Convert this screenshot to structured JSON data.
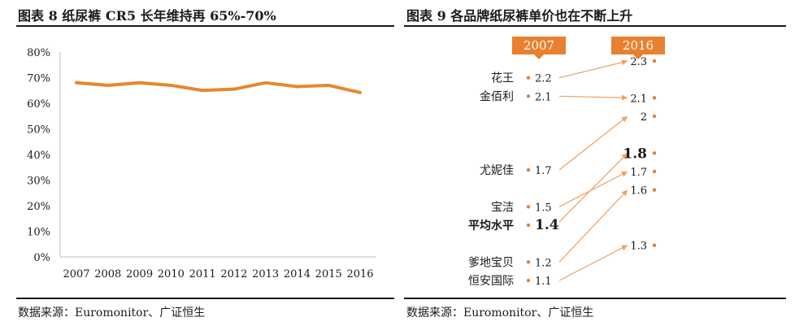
{
  "left_panel": {
    "title": "图表 8 纸尿裤 CR5 长年维持再 65%-70%",
    "source": "数据来源：Euromonitor、广证恒生"
  },
  "right_panel": {
    "title": "图表 9 各品牌纸尿裤单价也在不断上升",
    "source": "数据来源：Euromonitor、广证恒生"
  },
  "colors": {
    "line": "#E8872E",
    "slope": "#F0A060",
    "dot": "#E0803A",
    "badge": "#E8802F",
    "text": "#1a1a1a"
  },
  "chart_data": [
    {
      "type": "line",
      "title": "",
      "xlabel": "",
      "ylabel": "",
      "categories": [
        "2007",
        "2008",
        "2009",
        "2010",
        "2011",
        "2012",
        "2013",
        "2014",
        "2015",
        "2016"
      ],
      "series": [
        {
          "values": [
            68,
            67,
            68,
            67,
            65,
            65.5,
            68,
            66.5,
            67,
            64.2
          ]
        }
      ],
      "ylim": [
        0,
        80
      ],
      "yticks": [
        "0%",
        "10%",
        "20%",
        "30%",
        "40%",
        "50%",
        "60%",
        "70%",
        "80%"
      ],
      "grid": false
    },
    {
      "type": "slope",
      "header_left": "2007",
      "header_right": "2016",
      "pairs": [
        {
          "label": "花王",
          "v2007": "2.2",
          "v2016": "2.3",
          "highlight": false
        },
        {
          "label": "金佰利",
          "v2007": "2.1",
          "v2016": "2.1",
          "highlight": false
        },
        {
          "label": "尤妮佳",
          "v2007": "1.7",
          "v2016": "2",
          "highlight": false
        },
        {
          "label": "宝洁",
          "v2007": "1.5",
          "v2016": "1.7",
          "highlight": false
        },
        {
          "label": "平均水平",
          "v2007": "1.4",
          "v2016": "1.8",
          "highlight": true
        },
        {
          "label": "爹地宝贝",
          "v2007": "1.2",
          "v2016": "1.6",
          "highlight": false
        },
        {
          "label": "恒安国际",
          "v2007": "1.1",
          "v2016": "1.3",
          "highlight": false
        }
      ]
    }
  ]
}
